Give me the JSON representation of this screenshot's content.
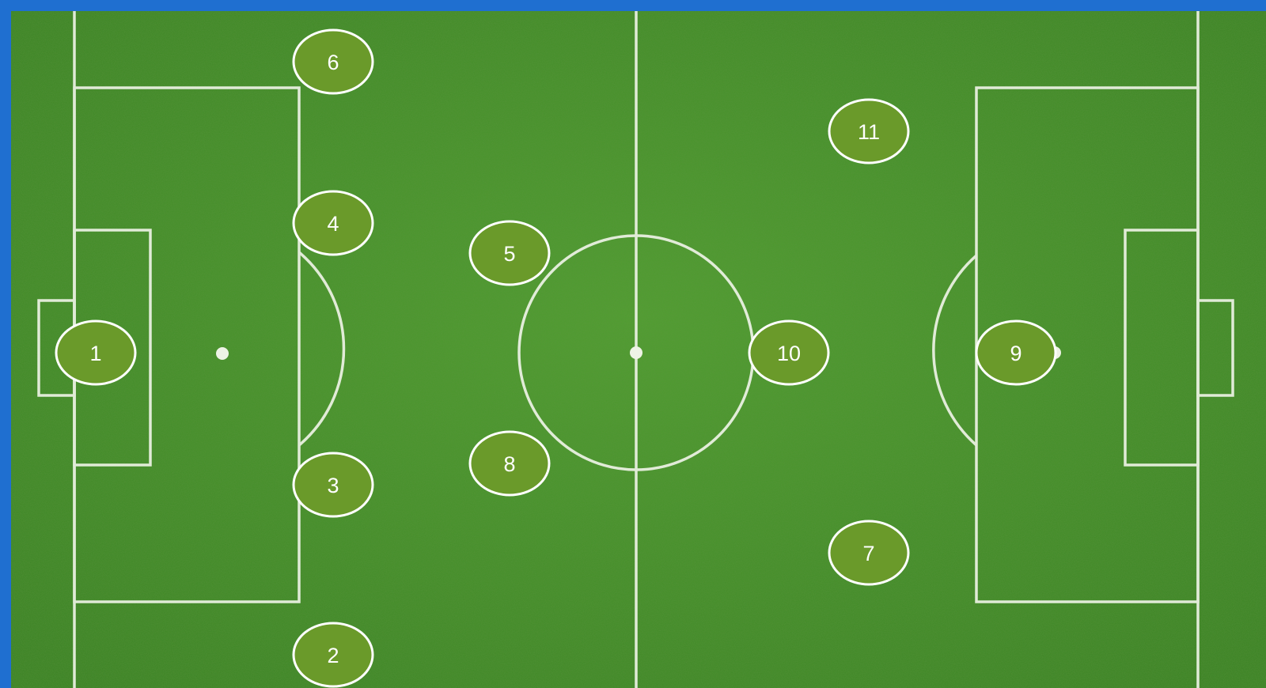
{
  "diagram": {
    "pitch_colors": {
      "grass_light": "#4d9a2e",
      "grass_dark": "#3f8a26",
      "lines": "#eef3e6",
      "player_fill": "#6a9a2a",
      "player_stroke": "#ffffff"
    },
    "players": [
      {
        "number": "1"
      },
      {
        "number": "2"
      },
      {
        "number": "3"
      },
      {
        "number": "4"
      },
      {
        "number": "5"
      },
      {
        "number": "6"
      },
      {
        "number": "7"
      },
      {
        "number": "8"
      },
      {
        "number": "9"
      },
      {
        "number": "10"
      },
      {
        "number": "11"
      }
    ]
  }
}
